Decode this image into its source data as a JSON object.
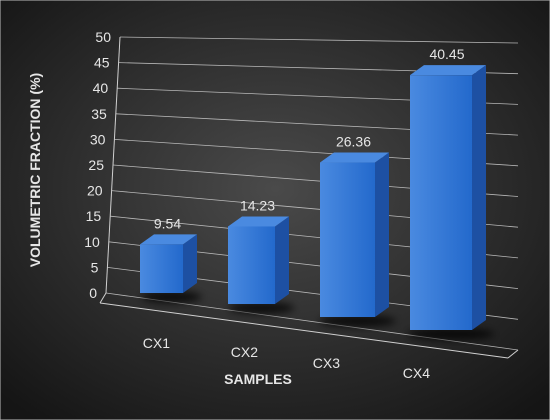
{
  "chart_data": {
    "type": "bar",
    "categories": [
      "CX1",
      "CX2",
      "CX3",
      "CX4"
    ],
    "values": [
      9.54,
      14.23,
      26.36,
      40.45
    ],
    "data_labels": [
      "9.54",
      "14.23",
      "26.36",
      "40.45"
    ],
    "title": "",
    "xlabel": "SAMPLES",
    "ylabel": "VOLUMETRIC FRACTION (%)",
    "ylim": [
      0,
      50
    ],
    "yticks": [
      0,
      5,
      10,
      15,
      20,
      25,
      30,
      35,
      40,
      45,
      50
    ],
    "grid": true,
    "legend": "none",
    "perspective": "3d",
    "colors": {
      "background_start": "#4a4a4a",
      "background_end": "#151515",
      "bar_front": "#2369cc",
      "bar_side": "#1d50a3",
      "bar_top": "#4a8ae0",
      "text": "#e6e6e6",
      "grid": "#d0d0d0",
      "shadow": "#000000"
    }
  }
}
